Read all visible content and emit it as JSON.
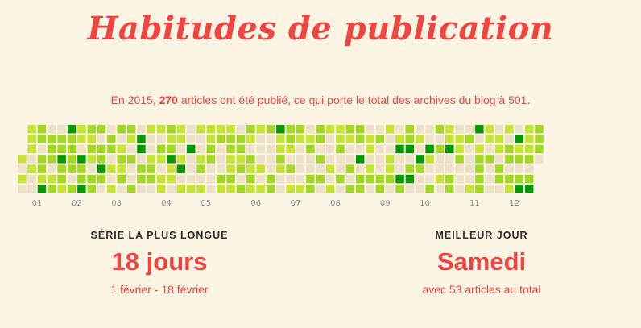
{
  "title": "Habitudes de publication",
  "summary": {
    "before_year": "En ",
    "year": "2015",
    "comma": ", ",
    "count": "270",
    "middle": " articles ont été publié, ce qui porte le total des archives du blog à ",
    "total": "501",
    "end": "."
  },
  "heatmap": {
    "month_labels": [
      "01",
      "02",
      "03",
      "04",
      "05",
      "06",
      "07",
      "08",
      "09",
      "10",
      "11",
      "12"
    ],
    "month_start_weeks": [
      0,
      4,
      8,
      13,
      17,
      22,
      26,
      30,
      35,
      39,
      44,
      48
    ],
    "colors": {
      "empty": "#ede2c9",
      "light": "#c5e436",
      "medium": "#a3d827",
      "dark": "#069906"
    },
    "label_color": "#8c8c8c"
  },
  "stats": {
    "streak": {
      "label": "SÉRIE LA PLUS LONGUE",
      "value": "18 jours",
      "sub": "1 février - 18 février"
    },
    "best_day": {
      "label": "MEILLEUR JOUR",
      "value": "Samedi",
      "sub": "avec 53 articles au total"
    }
  }
}
